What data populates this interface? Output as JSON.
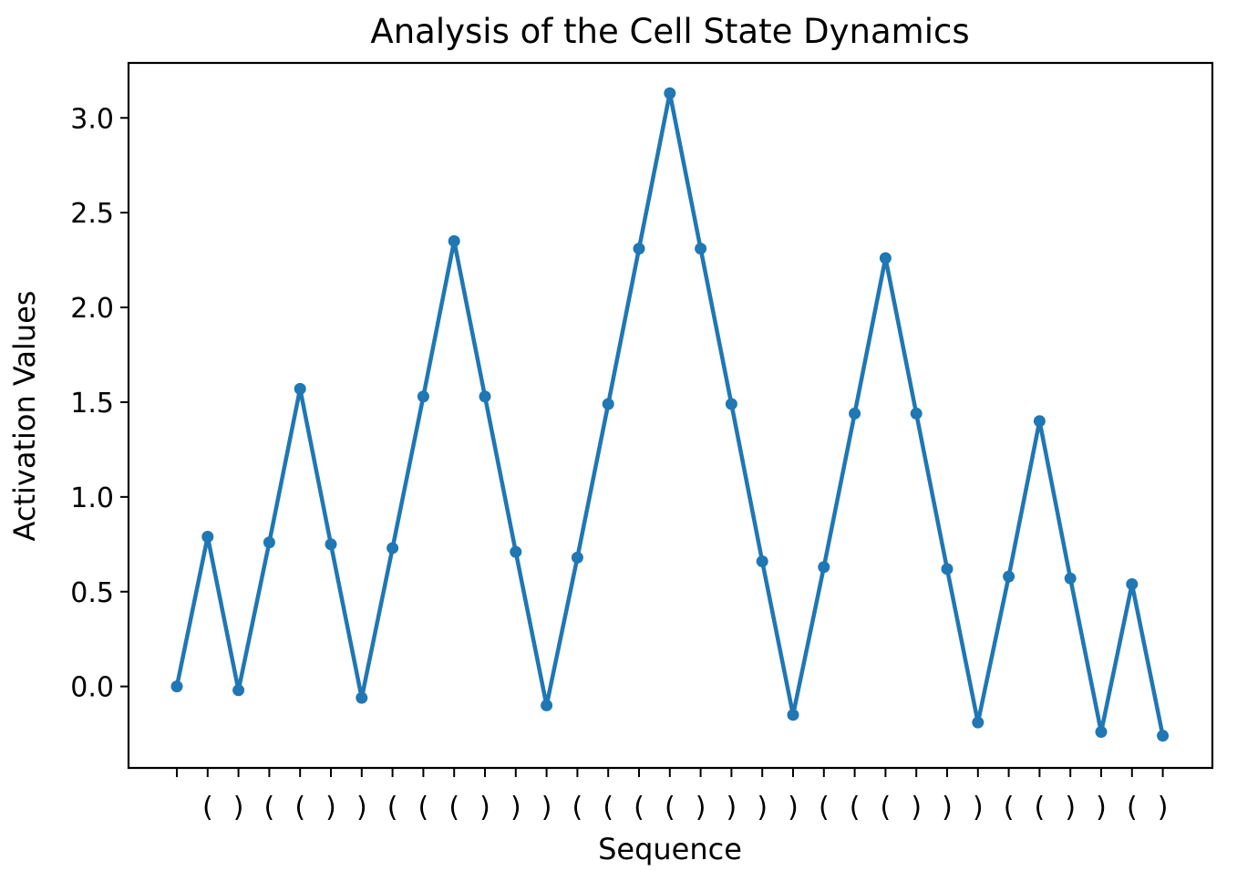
{
  "chart_data": {
    "type": "line",
    "title": "Analysis of the Cell State Dynamics",
    "xlabel": "Sequence",
    "ylabel": "Activation Values",
    "categories": [
      "",
      "(",
      ")",
      "(",
      "(",
      ")",
      ")",
      "(",
      "(",
      "(",
      ")",
      ")",
      ")",
      "(",
      "(",
      "(",
      "(",
      ")",
      ")",
      ")",
      ")",
      "(",
      "(",
      "(",
      ")",
      ")",
      ")",
      "(",
      "(",
      ")",
      ")",
      "(",
      ")"
    ],
    "values": [
      0.0,
      0.79,
      -0.02,
      0.76,
      1.57,
      0.75,
      -0.06,
      0.73,
      1.53,
      2.35,
      1.53,
      0.71,
      -0.1,
      0.68,
      1.49,
      2.31,
      3.13,
      2.31,
      1.49,
      0.66,
      -0.15,
      0.63,
      1.44,
      2.26,
      1.44,
      0.62,
      -0.19,
      0.58,
      1.4,
      0.57,
      -0.24,
      0.54,
      -0.26
    ],
    "ylim": [
      -0.43,
      3.29
    ],
    "yticks": [
      0.0,
      0.5,
      1.0,
      1.5,
      2.0,
      2.5,
      3.0
    ],
    "ytick_labels": [
      "0.0",
      "0.5",
      "1.0",
      "1.5",
      "2.0",
      "2.5",
      "3.0"
    ],
    "grid": false,
    "legend": "none",
    "color": "#1f77b4"
  }
}
